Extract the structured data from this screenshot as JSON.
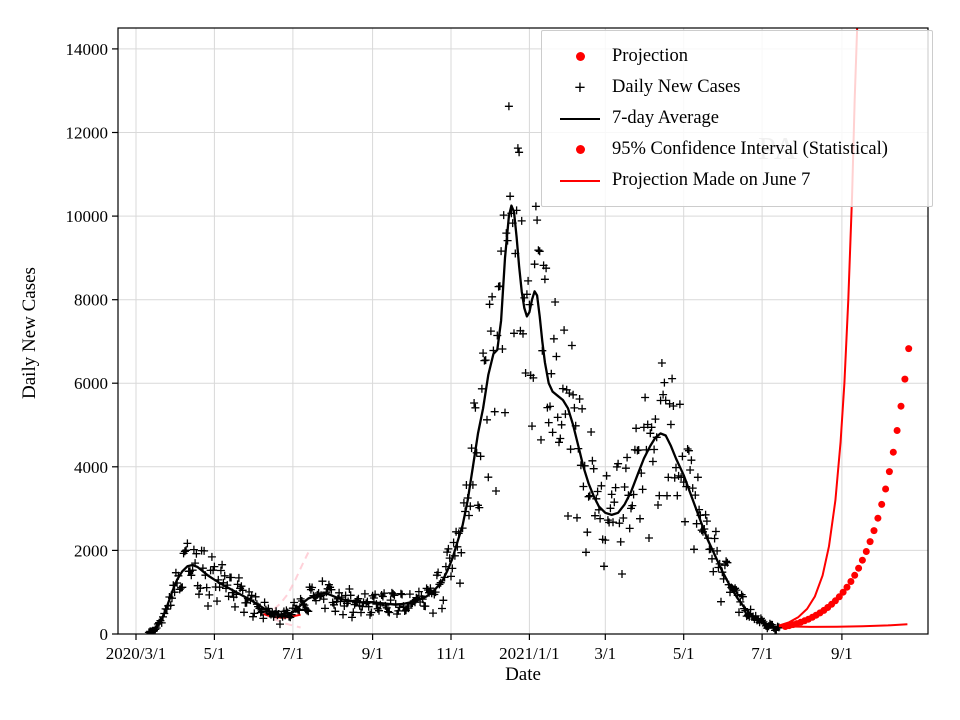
{
  "chart_data": {
    "type": "line",
    "title": "",
    "xlabel": "Date",
    "ylabel": "Daily New Cases",
    "watermark": "PA",
    "grid": true,
    "colors": {
      "red": "#ff0000",
      "black": "#000000",
      "pink": "#ffb9c5",
      "grid": "#d9d9d9",
      "watermark": "#a8a8a8",
      "legend_border": "#cccccc"
    },
    "x_axis": {
      "note": "days since 2020-03-01",
      "tick_days": [
        0,
        61,
        122,
        184,
        245,
        306,
        365,
        426,
        487,
        549
      ],
      "tick_labels": [
        "2020/3/1",
        "5/1",
        "7/1",
        "9/1",
        "11/1",
        "2021/1/1",
        "3/1",
        "5/1",
        "7/1",
        "9/1"
      ],
      "range_days": [
        -14,
        616
      ]
    },
    "y_axis": {
      "ticks": [
        0,
        2000,
        4000,
        6000,
        8000,
        10000,
        12000,
        14000
      ],
      "max": 14500
    },
    "legend": [
      {
        "marker": "red-dot",
        "label": "Projection"
      },
      {
        "marker": "black-plus",
        "label": "Daily New Cases"
      },
      {
        "marker": "black-line",
        "label": "7-day Average"
      },
      {
        "marker": "red-dot",
        "label": "95% Confidence Interval (Statistical)"
      },
      {
        "marker": "red-line",
        "label": "Projection Made on June 7"
      }
    ],
    "series": {
      "avg_7day": {
        "type": "line",
        "color": "#000000",
        "points": [
          [
            8,
            20
          ],
          [
            12,
            60
          ],
          [
            16,
            150
          ],
          [
            20,
            350
          ],
          [
            24,
            650
          ],
          [
            28,
            1000
          ],
          [
            32,
            1300
          ],
          [
            36,
            1500
          ],
          [
            40,
            1620
          ],
          [
            44,
            1650
          ],
          [
            48,
            1600
          ],
          [
            52,
            1500
          ],
          [
            56,
            1400
          ],
          [
            61,
            1300
          ],
          [
            66,
            1200
          ],
          [
            72,
            1100
          ],
          [
            78,
            1000
          ],
          [
            84,
            900
          ],
          [
            90,
            800
          ],
          [
            95,
            700
          ],
          [
            100,
            600
          ],
          [
            105,
            520
          ],
          [
            110,
            460
          ],
          [
            114,
            430
          ],
          [
            118,
            450
          ],
          [
            122,
            520
          ],
          [
            126,
            620
          ],
          [
            130,
            750
          ],
          [
            134,
            850
          ],
          [
            138,
            900
          ],
          [
            142,
            950
          ],
          [
            146,
            970
          ],
          [
            150,
            950
          ],
          [
            154,
            900
          ],
          [
            158,
            850
          ],
          [
            162,
            820
          ],
          [
            166,
            800
          ],
          [
            170,
            780
          ],
          [
            175,
            760
          ],
          [
            180,
            750
          ],
          [
            184,
            760
          ],
          [
            190,
            740
          ],
          [
            196,
            720
          ],
          [
            202,
            700
          ],
          [
            208,
            720
          ],
          [
            214,
            760
          ],
          [
            220,
            820
          ],
          [
            226,
            900
          ],
          [
            232,
            1050
          ],
          [
            238,
            1250
          ],
          [
            242,
            1500
          ],
          [
            246,
            1800
          ],
          [
            250,
            2200
          ],
          [
            254,
            2600
          ],
          [
            258,
            3200
          ],
          [
            262,
            4000
          ],
          [
            266,
            4800
          ],
          [
            270,
            5400
          ],
          [
            274,
            6200
          ],
          [
            278,
            6700
          ],
          [
            281,
            6800
          ],
          [
            284,
            7500
          ],
          [
            287,
            9000
          ],
          [
            290,
            10000
          ],
          [
            292,
            10250
          ],
          [
            294,
            10100
          ],
          [
            296,
            9500
          ],
          [
            298,
            8800
          ],
          [
            300,
            8200
          ],
          [
            302,
            7800
          ],
          [
            304,
            7600
          ],
          [
            306,
            7700
          ],
          [
            308,
            8000
          ],
          [
            310,
            8200
          ],
          [
            312,
            8100
          ],
          [
            314,
            7600
          ],
          [
            316,
            7000
          ],
          [
            318,
            6500
          ],
          [
            321,
            6000
          ],
          [
            324,
            5800
          ],
          [
            328,
            5700
          ],
          [
            332,
            5600
          ],
          [
            336,
            5400
          ],
          [
            340,
            5000
          ],
          [
            344,
            4500
          ],
          [
            348,
            4000
          ],
          [
            352,
            3600
          ],
          [
            356,
            3300
          ],
          [
            360,
            3050
          ],
          [
            365,
            2900
          ],
          [
            370,
            2850
          ],
          [
            375,
            2900
          ],
          [
            380,
            3100
          ],
          [
            385,
            3400
          ],
          [
            390,
            3800
          ],
          [
            395,
            4200
          ],
          [
            400,
            4500
          ],
          [
            404,
            4700
          ],
          [
            408,
            4800
          ],
          [
            412,
            4750
          ],
          [
            416,
            4500
          ],
          [
            420,
            4200
          ],
          [
            426,
            3800
          ],
          [
            432,
            3300
          ],
          [
            438,
            2800
          ],
          [
            444,
            2300
          ],
          [
            450,
            1900
          ],
          [
            456,
            1500
          ],
          [
            462,
            1150
          ],
          [
            468,
            850
          ],
          [
            474,
            600
          ],
          [
            480,
            420
          ],
          [
            485,
            300
          ],
          [
            490,
            220
          ],
          [
            495,
            170
          ],
          [
            500,
            150
          ],
          [
            505,
            170
          ],
          [
            510,
            210
          ]
        ]
      },
      "daily_scatter": {
        "type": "scatter-plus",
        "color": "#000000",
        "generated_from": "avg_7day",
        "day_range": [
          10,
          500
        ],
        "weekly_pattern": [
          -0.28,
          -0.15,
          0.06,
          0.14,
          0.16,
          0.1,
          -0.03
        ],
        "noise_amp": 0.25,
        "seed": 20210607
      },
      "projection": {
        "type": "dots",
        "color": "#ff0000",
        "points": [
          [
            505,
            180
          ],
          [
            508,
            200
          ],
          [
            511,
            225
          ],
          [
            514,
            250
          ],
          [
            517,
            280
          ],
          [
            520,
            315
          ],
          [
            523,
            355
          ],
          [
            526,
            400
          ],
          [
            529,
            450
          ],
          [
            532,
            505
          ],
          [
            535,
            565
          ],
          [
            538,
            635
          ],
          [
            541,
            710
          ],
          [
            544,
            795
          ],
          [
            547,
            890
          ],
          [
            550,
            1000
          ],
          [
            553,
            1120
          ],
          [
            556,
            1255
          ],
          [
            559,
            1405
          ],
          [
            562,
            1575
          ],
          [
            565,
            1765
          ],
          [
            568,
            1975
          ],
          [
            571,
            2210
          ],
          [
            574,
            2475
          ],
          [
            577,
            2770
          ],
          [
            580,
            3100
          ],
          [
            583,
            3470
          ],
          [
            586,
            3885
          ],
          [
            589,
            4350
          ],
          [
            592,
            4870
          ],
          [
            595,
            5450
          ],
          [
            598,
            6100
          ],
          [
            601,
            6830
          ]
        ]
      },
      "ci_upper": {
        "type": "line",
        "color": "#ff0000",
        "points": [
          [
            500,
            200
          ],
          [
            508,
            280
          ],
          [
            515,
            400
          ],
          [
            522,
            600
          ],
          [
            528,
            900
          ],
          [
            534,
            1400
          ],
          [
            539,
            2100
          ],
          [
            544,
            3200
          ],
          [
            548,
            4600
          ],
          [
            551,
            6000
          ],
          [
            554,
            8000
          ],
          [
            557,
            10500
          ],
          [
            559,
            12800
          ],
          [
            561,
            14600
          ]
        ]
      },
      "ci_lower": {
        "type": "line",
        "color": "#ff0000",
        "points": [
          [
            500,
            190
          ],
          [
            510,
            180
          ],
          [
            525,
            170
          ],
          [
            545,
            175
          ],
          [
            565,
            185
          ],
          [
            585,
            205
          ],
          [
            600,
            235
          ]
        ]
      },
      "june7_projection": {
        "type": "line",
        "color": "#ff0000",
        "points": [
          [
            99,
            480
          ],
          [
            104,
            430
          ],
          [
            109,
            400
          ],
          [
            114,
            390
          ],
          [
            119,
            405
          ],
          [
            124,
            435
          ],
          [
            128,
            465
          ]
        ]
      },
      "june7_ci_upper": {
        "type": "dashed-line",
        "color": "#ffb9c5",
        "points": [
          [
            99,
            480
          ],
          [
            106,
            560
          ],
          [
            112,
            720
          ],
          [
            118,
            950
          ],
          [
            124,
            1300
          ],
          [
            130,
            1700
          ],
          [
            134,
            1950
          ]
        ]
      },
      "june7_ci_lower": {
        "type": "dashed-line",
        "color": "#ffb9c5",
        "points": [
          [
            99,
            480
          ],
          [
            105,
            390
          ],
          [
            111,
            310
          ],
          [
            117,
            245
          ],
          [
            123,
            195
          ],
          [
            128,
            155
          ]
        ]
      }
    }
  }
}
